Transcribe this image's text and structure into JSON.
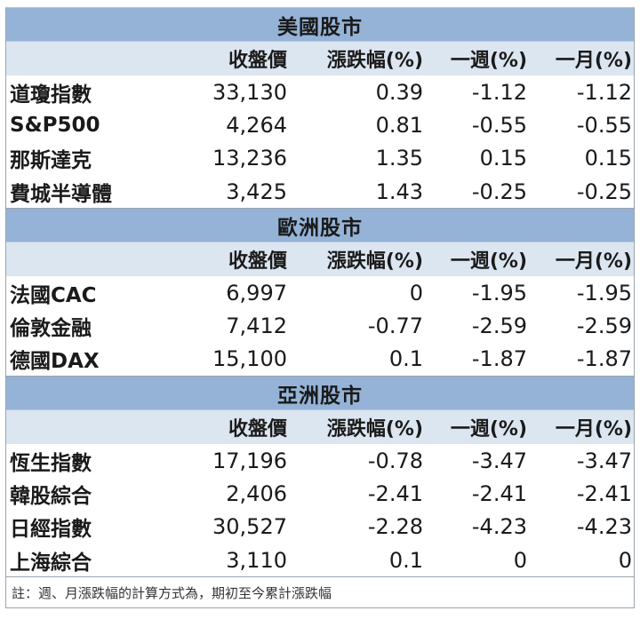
{
  "columns": [
    "",
    "收盤價",
    "漲跌幅(%)",
    "一週(%)",
    "一月(%)"
  ],
  "sections": [
    {
      "title": "美國股市",
      "rows": [
        {
          "name": "道瓊指數",
          "close": "33,130",
          "change": "0.39",
          "week": "-1.12",
          "month": "-1.12"
        },
        {
          "name": "S&P500",
          "close": "4,264",
          "change": "0.81",
          "week": "-0.55",
          "month": "-0.55"
        },
        {
          "name": "那斯達克",
          "close": "13,236",
          "change": "1.35",
          "week": "0.15",
          "month": "0.15"
        },
        {
          "name": "費城半導體",
          "close": "3,425",
          "change": "1.43",
          "week": "-0.25",
          "month": "-0.25"
        }
      ]
    },
    {
      "title": "歐洲股市",
      "rows": [
        {
          "name": "法國CAC",
          "close": "6,997",
          "change": "0",
          "week": "-1.95",
          "month": "-1.95"
        },
        {
          "name": "倫敦金融",
          "close": "7,412",
          "change": "-0.77",
          "week": "-2.59",
          "month": "-2.59"
        },
        {
          "name": "德國DAX",
          "close": "15,100",
          "change": "0.1",
          "week": "-1.87",
          "month": "-1.87"
        }
      ]
    },
    {
      "title": "亞洲股市",
      "rows": [
        {
          "name": "恆生指數",
          "close": "17,196",
          "change": "-0.78",
          "week": "-3.47",
          "month": "-3.47"
        },
        {
          "name": "韓股綜合",
          "close": "2,406",
          "change": "-2.41",
          "week": "-2.41",
          "month": "-2.41"
        },
        {
          "name": "日經指數",
          "close": "30,527",
          "change": "-2.28",
          "week": "-4.23",
          "month": "-4.23"
        },
        {
          "name": "上海綜合",
          "close": "3,110",
          "change": "0.1",
          "week": "0",
          "month": "0"
        }
      ]
    }
  ],
  "footnote": "註：週、月漲跌幅的計算方式為，期初至今累計漲跌幅",
  "colors": {
    "section_header": "#95b3d7",
    "column_header": "#dce6f1",
    "border": "#9aa3ad"
  }
}
